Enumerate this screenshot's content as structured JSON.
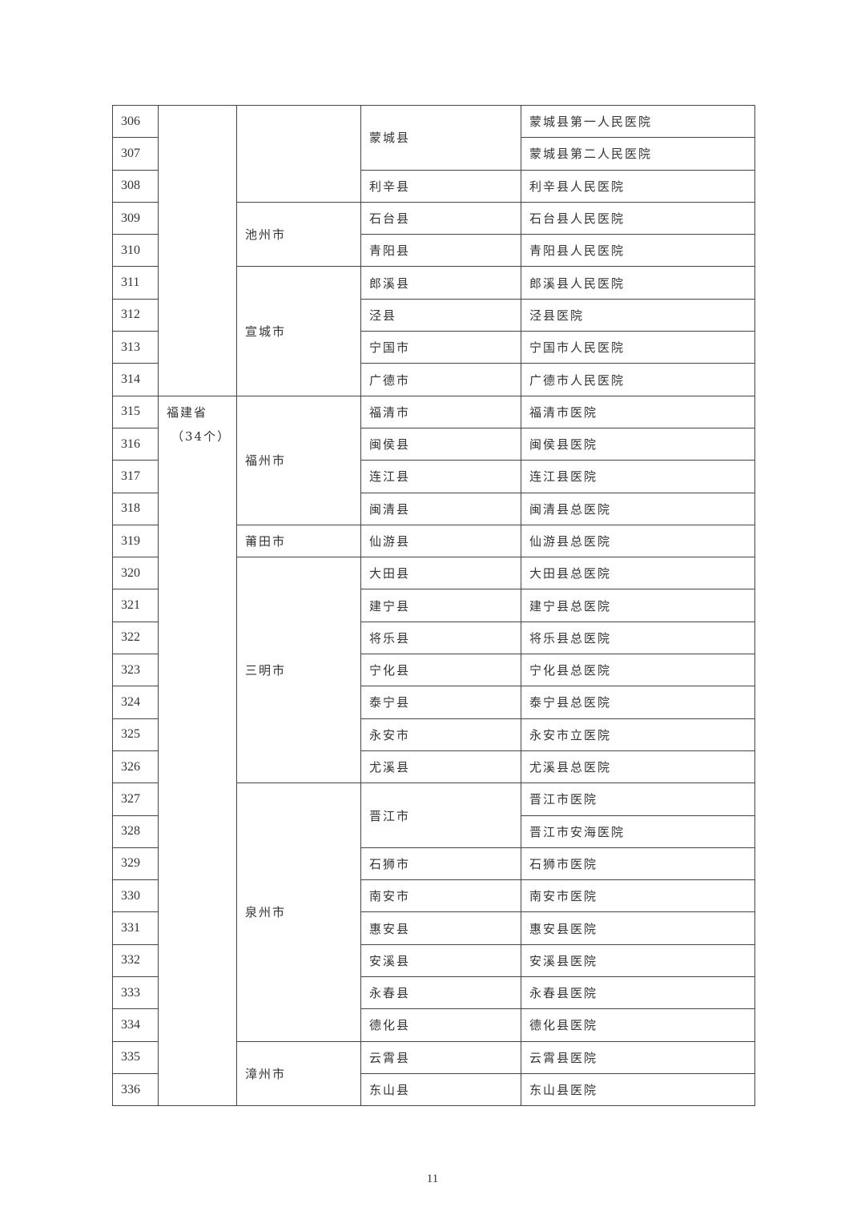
{
  "rows": [
    {
      "no": "306",
      "province": "",
      "city": "",
      "county": "蒙城县",
      "hospital": "蒙城县第一人民医院"
    },
    {
      "no": "307",
      "province": "",
      "city": "",
      "county": "蒙城县",
      "hospital": "蒙城县第二人民医院"
    },
    {
      "no": "308",
      "province": "",
      "city": "",
      "county": "利辛县",
      "hospital": "利辛县人民医院"
    },
    {
      "no": "309",
      "province": "",
      "city": "池州市",
      "county": "石台县",
      "hospital": "石台县人民医院"
    },
    {
      "no": "310",
      "province": "",
      "city": "池州市",
      "county": "青阳县",
      "hospital": "青阳县人民医院"
    },
    {
      "no": "311",
      "province": "",
      "city": "宣城市",
      "county": "郎溪县",
      "hospital": "郎溪县人民医院"
    },
    {
      "no": "312",
      "province": "",
      "city": "宣城市",
      "county": "泾县",
      "hospital": "泾县医院"
    },
    {
      "no": "313",
      "province": "",
      "city": "宣城市",
      "county": "宁国市",
      "hospital": "宁国市人民医院"
    },
    {
      "no": "314",
      "province": "",
      "city": "宣城市",
      "county": "广德市",
      "hospital": "广德市人民医院"
    },
    {
      "no": "315",
      "province": "福建省",
      "city": "福州市",
      "county": "福清市",
      "hospital": "福清市医院"
    },
    {
      "no": "316",
      "province": "福建省",
      "city": "福州市",
      "county": "闽侯县",
      "hospital": "闽侯县医院"
    },
    {
      "no": "317",
      "province": "福建省",
      "city": "福州市",
      "county": "连江县",
      "hospital": "连江县医院"
    },
    {
      "no": "318",
      "province": "福建省",
      "city": "福州市",
      "county": "闽清县",
      "hospital": "闽清县总医院"
    },
    {
      "no": "319",
      "province": "福建省",
      "city": "莆田市",
      "county": "仙游县",
      "hospital": "仙游县总医院"
    },
    {
      "no": "320",
      "province": "福建省",
      "city": "三明市",
      "county": "大田县",
      "hospital": "大田县总医院"
    },
    {
      "no": "321",
      "province": "福建省",
      "city": "三明市",
      "county": "建宁县",
      "hospital": "建宁县总医院"
    },
    {
      "no": "322",
      "province": "福建省",
      "city": "三明市",
      "county": "将乐县",
      "hospital": "将乐县总医院"
    },
    {
      "no": "323",
      "province": "福建省",
      "city": "三明市",
      "county": "宁化县",
      "hospital": "宁化县总医院"
    },
    {
      "no": "324",
      "province": "福建省",
      "city": "三明市",
      "county": "泰宁县",
      "hospital": "泰宁县总医院"
    },
    {
      "no": "325",
      "province": "福建省",
      "city": "三明市",
      "county": "永安市",
      "hospital": "永安市立医院"
    },
    {
      "no": "326",
      "province": "福建省",
      "city": "三明市",
      "county": "尤溪县",
      "hospital": "尤溪县总医院"
    },
    {
      "no": "327",
      "province": "福建省",
      "city": "泉州市",
      "county": "晋江市",
      "hospital": "晋江市医院"
    },
    {
      "no": "328",
      "province": "福建省",
      "city": "泉州市",
      "county": "晋江市",
      "hospital": "晋江市安海医院"
    },
    {
      "no": "329",
      "province": "福建省",
      "city": "泉州市",
      "county": "石狮市",
      "hospital": "石狮市医院"
    },
    {
      "no": "330",
      "province": "福建省",
      "city": "泉州市",
      "county": "南安市",
      "hospital": "南安市医院"
    },
    {
      "no": "331",
      "province": "福建省",
      "city": "泉州市",
      "county": "惠安县",
      "hospital": "惠安县医院"
    },
    {
      "no": "332",
      "province": "福建省",
      "city": "泉州市",
      "county": "安溪县",
      "hospital": "安溪县医院"
    },
    {
      "no": "333",
      "province": "福建省",
      "city": "泉州市",
      "county": "永春县",
      "hospital": "永春县医院"
    },
    {
      "no": "334",
      "province": "福建省",
      "city": "泉州市",
      "county": "德化县",
      "hospital": "德化县医院"
    },
    {
      "no": "335",
      "province": "福建省",
      "city": "漳州市",
      "county": "云霄县",
      "hospital": "云霄县医院"
    },
    {
      "no": "336",
      "province": "福建省",
      "city": "漳州市",
      "county": "东山县",
      "hospital": "东山县医院"
    }
  ],
  "province_counts": {
    "福建省": "（34个）"
  },
  "page_number": "11"
}
